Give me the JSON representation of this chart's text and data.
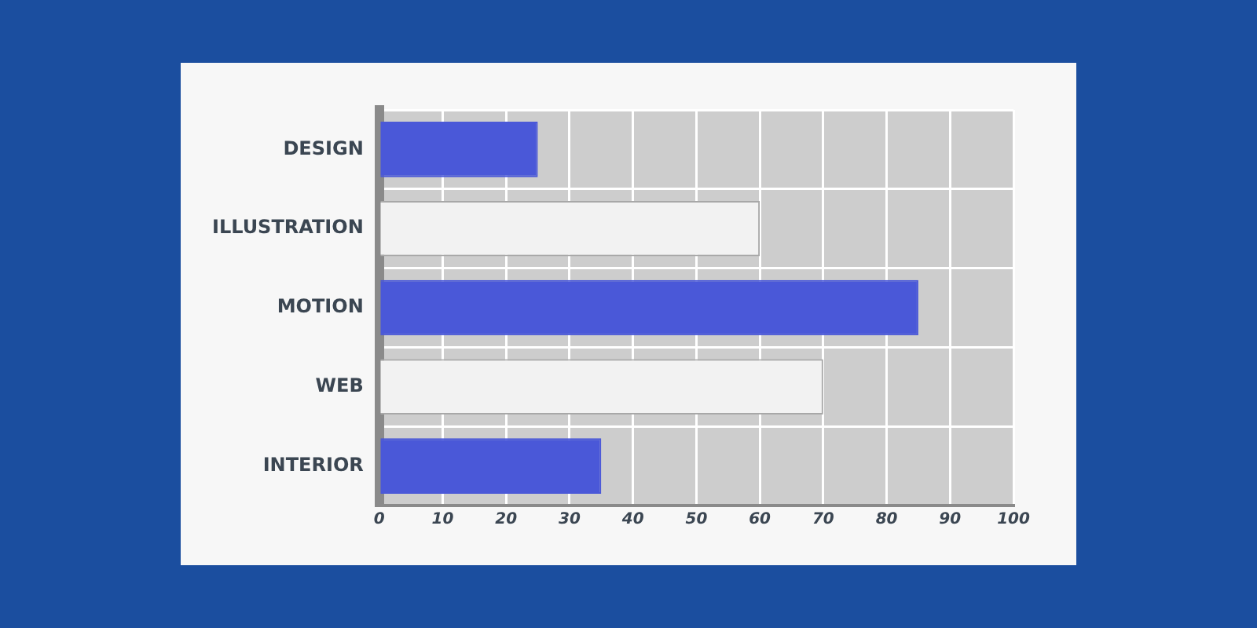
{
  "chart_data": {
    "type": "bar",
    "orientation": "horizontal",
    "categories": [
      "DESIGN",
      "ILLUSTRATION",
      "MOTION",
      "WEB",
      "INTERIOR"
    ],
    "values": [
      25,
      60,
      85,
      70,
      35
    ],
    "colors": [
      "#4a58d8",
      "#f2f2f2",
      "#4a58d8",
      "#f2f2f2",
      "#4a58d8"
    ],
    "xlim": [
      0,
      100
    ],
    "xticks": [
      0,
      10,
      20,
      30,
      40,
      50,
      60,
      70,
      80,
      90,
      100
    ],
    "grid": true
  }
}
